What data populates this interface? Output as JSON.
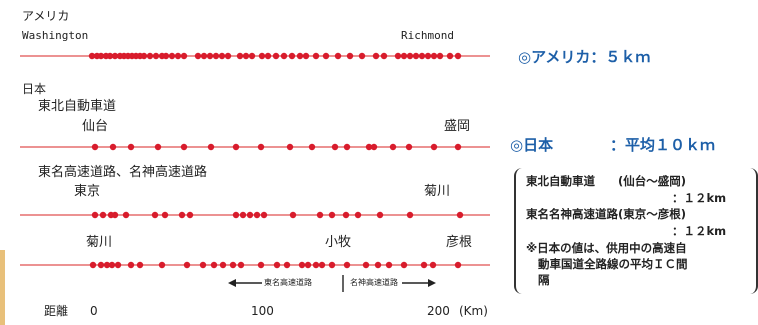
{
  "usa": {
    "title": "アメリカ",
    "start_city": "Washington",
    "end_city": "Richmond",
    "summary": "◎アメリカ：５ｋｍ"
  },
  "japan": {
    "title": "日本",
    "summary_label": "◎日本",
    "summary_value": "：平均１０ｋｍ",
    "tohoku": {
      "name": "東北自動車道",
      "start_city": "仙台",
      "end_city": "盛岡"
    },
    "tomei_meishin": {
      "name": "東名高速道路、名神高速道路",
      "start_city": "東京",
      "end_city": "菊川"
    },
    "third": {
      "start_city": "菊川",
      "mid_city": "小牧",
      "end_city": "彦根"
    }
  },
  "legend": {
    "tomei_label": "東名高速道路",
    "meishin_label": "名神高速道路"
  },
  "axis": {
    "label": "距離",
    "ticks": [
      "0",
      "100",
      "200"
    ],
    "unit": "(Km)"
  },
  "note": {
    "line1": "東北自動車道　　(仙台～盛岡)",
    "line2": "：１２km",
    "line3": "東名名神高速道路(東京～彦根)",
    "line4": "：１２km",
    "line5": "※日本の値は、供用中の高速自",
    "line6": "動車国道全路線の平均ＩＣ間",
    "line7": "隔"
  },
  "colors": {
    "line": "#e05050",
    "dot": "#d81c2c",
    "accent": "#1d5fa8"
  }
}
